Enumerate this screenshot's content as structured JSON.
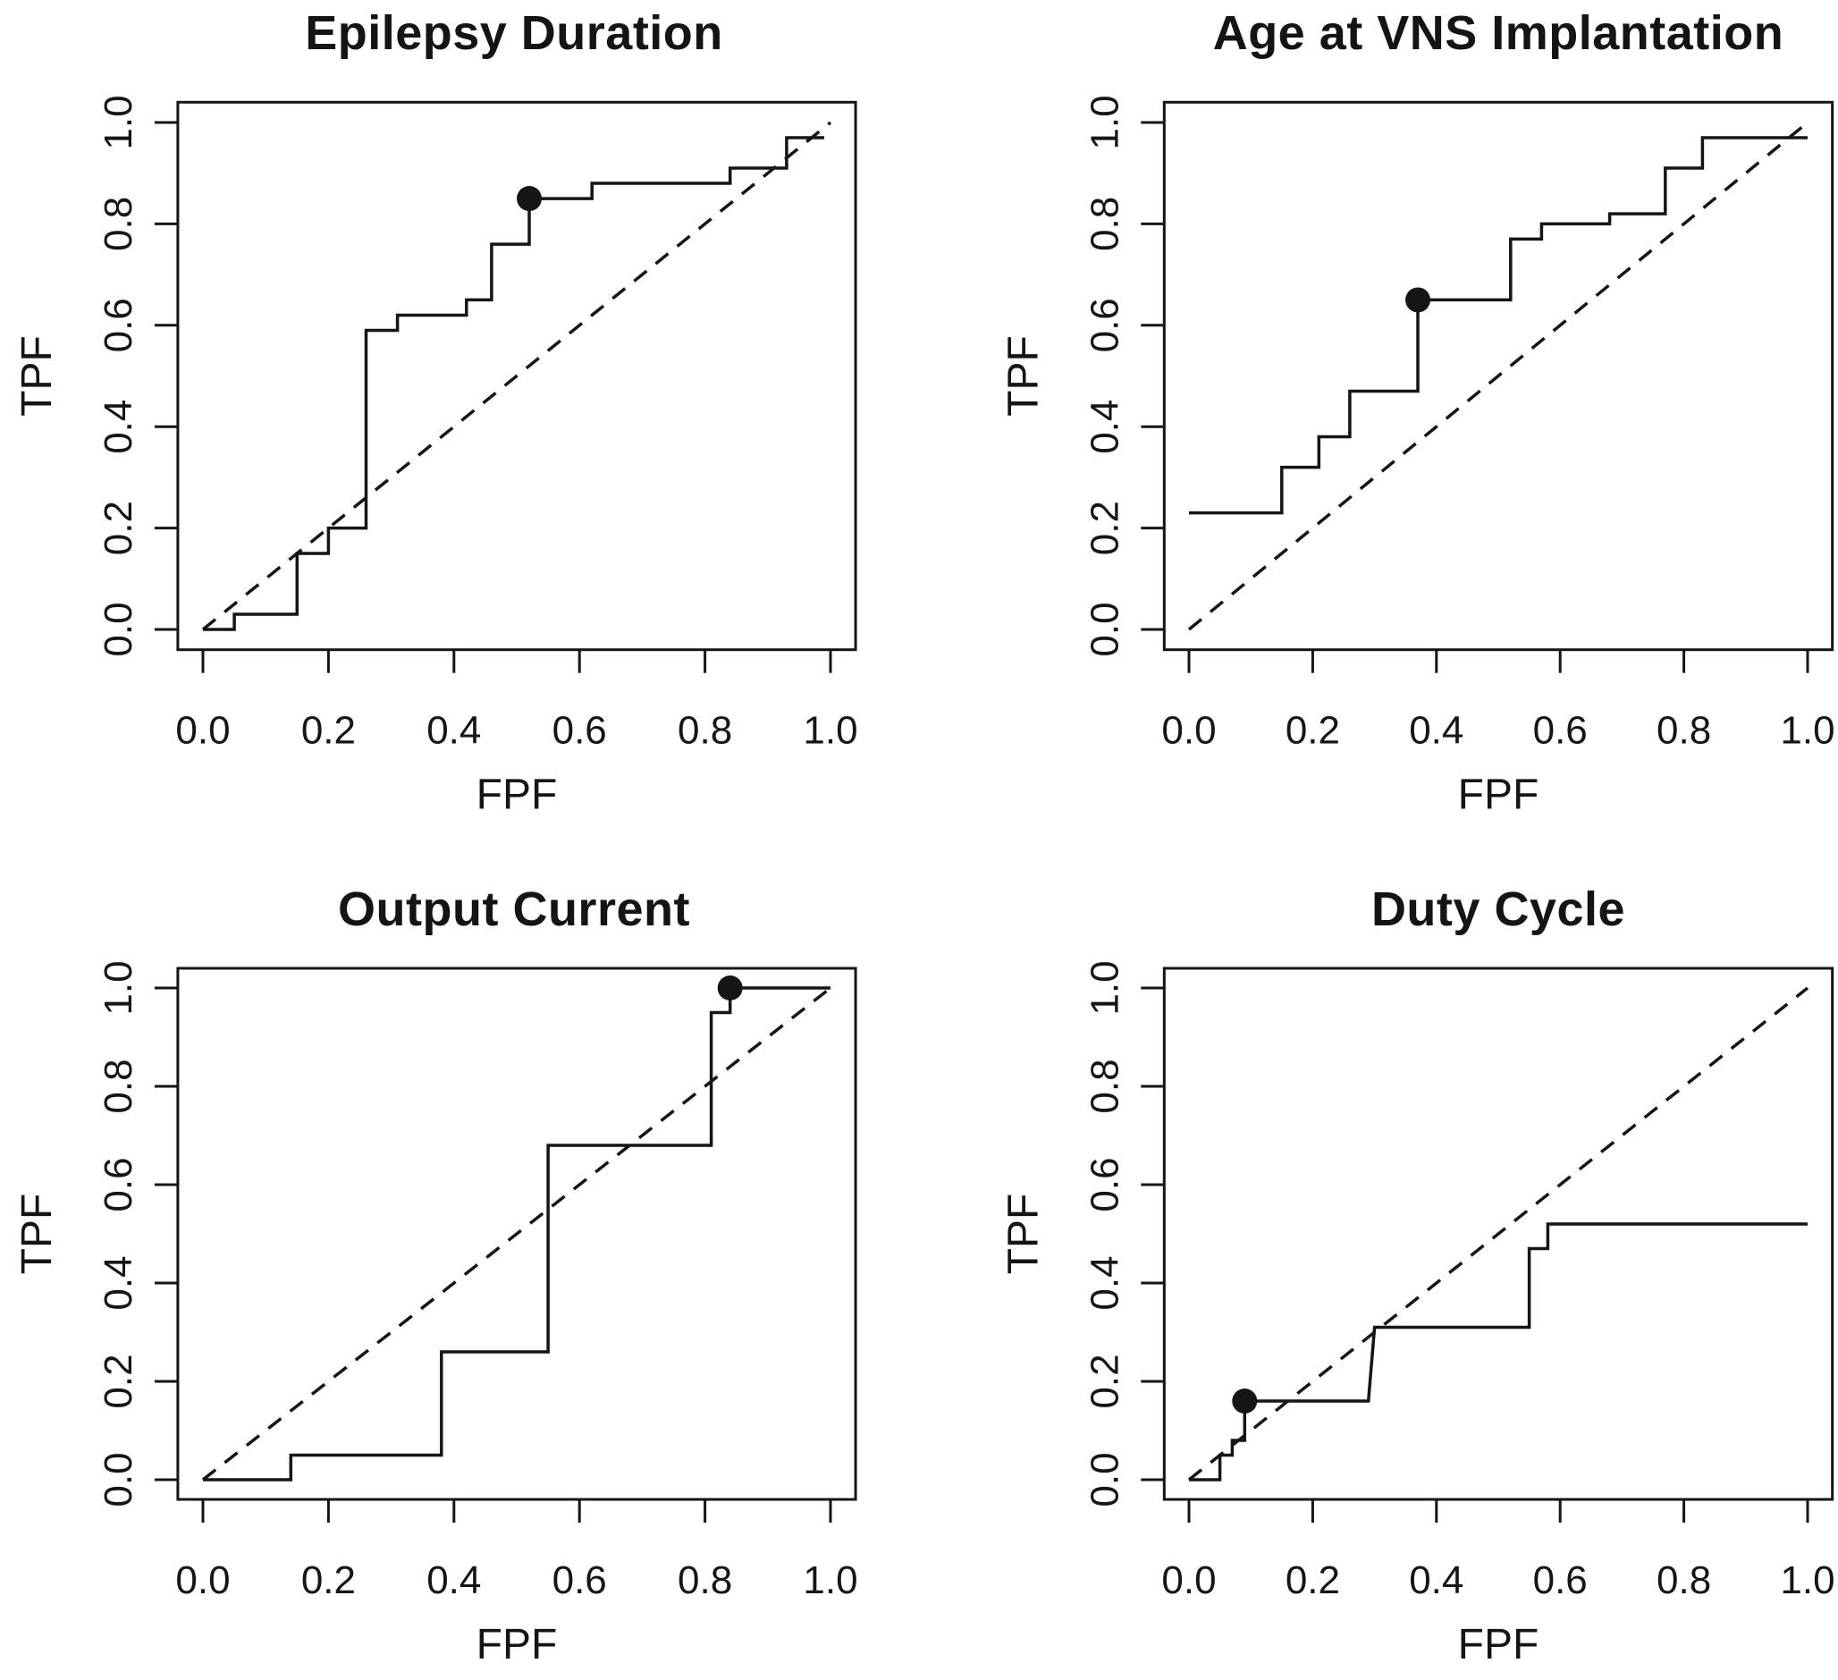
{
  "page": {
    "background": "#ffffff",
    "ink_color": "#151515",
    "description": "2x2 grid of ROC curves (TPF vs FPF), solid step curve, dashed chance diagonal, filled circle at optimal cutoff"
  },
  "chart_data": [
    {
      "type": "line",
      "subtype": "roc-step",
      "title": "Epilepsy Duration",
      "xlabel": "FPF",
      "ylabel": "TPF",
      "xlim": [
        0,
        1
      ],
      "ylim": [
        0,
        1
      ],
      "xticks": [
        "0.0",
        "0.2",
        "0.4",
        "0.6",
        "0.8",
        "1.0"
      ],
      "yticks": [
        "0.0",
        "0.2",
        "0.4",
        "0.6",
        "0.8",
        "1.0"
      ],
      "grid": false,
      "legend": "none",
      "series": [
        {
          "name": "ROC curve",
          "style": "step-solid",
          "points": [
            [
              0,
              0
            ],
            [
              0.05,
              0
            ],
            [
              0.05,
              0.03
            ],
            [
              0.15,
              0.03
            ],
            [
              0.15,
              0.15
            ],
            [
              0.2,
              0.15
            ],
            [
              0.2,
              0.2
            ],
            [
              0.26,
              0.2
            ],
            [
              0.26,
              0.59
            ],
            [
              0.31,
              0.59
            ],
            [
              0.31,
              0.62
            ],
            [
              0.42,
              0.62
            ],
            [
              0.42,
              0.65
            ],
            [
              0.46,
              0.65
            ],
            [
              0.46,
              0.76
            ],
            [
              0.52,
              0.76
            ],
            [
              0.52,
              0.85
            ],
            [
              0.62,
              0.85
            ],
            [
              0.62,
              0.88
            ],
            [
              0.84,
              0.88
            ],
            [
              0.84,
              0.91
            ],
            [
              0.93,
              0.91
            ],
            [
              0.93,
              0.97
            ],
            [
              0.99,
              0.97
            ]
          ]
        },
        {
          "name": "chance diagonal",
          "style": "dashed",
          "points": [
            [
              0,
              0
            ],
            [
              1,
              1
            ]
          ]
        }
      ],
      "marked_point": {
        "x": 0.52,
        "y": 0.85
      }
    },
    {
      "type": "line",
      "subtype": "roc-step",
      "title": "Age at VNS Implantation",
      "xlabel": "FPF",
      "ylabel": "TPF",
      "xlim": [
        0,
        1
      ],
      "ylim": [
        0,
        1
      ],
      "xticks": [
        "0.0",
        "0.2",
        "0.4",
        "0.6",
        "0.8",
        "1.0"
      ],
      "yticks": [
        "0.0",
        "0.2",
        "0.4",
        "0.6",
        "0.8",
        "1.0"
      ],
      "grid": false,
      "legend": "none",
      "series": [
        {
          "name": "ROC curve",
          "style": "step-solid",
          "points": [
            [
              0,
              0.23
            ],
            [
              0.15,
              0.23
            ],
            [
              0.15,
              0.32
            ],
            [
              0.21,
              0.32
            ],
            [
              0.21,
              0.38
            ],
            [
              0.26,
              0.38
            ],
            [
              0.26,
              0.47
            ],
            [
              0.37,
              0.47
            ],
            [
              0.37,
              0.65
            ],
            [
              0.52,
              0.65
            ],
            [
              0.52,
              0.77
            ],
            [
              0.57,
              0.77
            ],
            [
              0.57,
              0.8
            ],
            [
              0.68,
              0.8
            ],
            [
              0.68,
              0.82
            ],
            [
              0.77,
              0.82
            ],
            [
              0.77,
              0.91
            ],
            [
              0.83,
              0.91
            ],
            [
              0.83,
              0.97
            ],
            [
              1,
              0.97
            ]
          ]
        },
        {
          "name": "chance diagonal",
          "style": "dashed",
          "points": [
            [
              0,
              0
            ],
            [
              1,
              1
            ]
          ]
        }
      ],
      "marked_point": {
        "x": 0.37,
        "y": 0.65
      }
    },
    {
      "type": "line",
      "subtype": "roc-step",
      "title": "Output Current",
      "xlabel": "FPF",
      "ylabel": "TPF",
      "xlim": [
        0,
        1
      ],
      "ylim": [
        0,
        1
      ],
      "xticks": [
        "0.0",
        "0.2",
        "0.4",
        "0.6",
        "0.8",
        "1.0"
      ],
      "yticks": [
        "0.0",
        "0.2",
        "0.4",
        "0.6",
        "0.8",
        "1.0"
      ],
      "grid": false,
      "legend": "none",
      "series": [
        {
          "name": "ROC curve",
          "style": "step-solid",
          "points": [
            [
              0,
              0
            ],
            [
              0.14,
              0
            ],
            [
              0.14,
              0.05
            ],
            [
              0.38,
              0.05
            ],
            [
              0.38,
              0.26
            ],
            [
              0.55,
              0.26
            ],
            [
              0.55,
              0.68
            ],
            [
              0.81,
              0.68
            ],
            [
              0.81,
              0.95
            ],
            [
              0.84,
              0.95
            ],
            [
              0.84,
              1
            ],
            [
              1,
              1
            ]
          ]
        },
        {
          "name": "chance diagonal",
          "style": "dashed",
          "points": [
            [
              0,
              0
            ],
            [
              1,
              1
            ]
          ]
        }
      ],
      "marked_point": {
        "x": 0.84,
        "y": 1
      }
    },
    {
      "type": "line",
      "subtype": "roc-step",
      "title": "Duty Cycle",
      "xlabel": "FPF",
      "ylabel": "TPF",
      "xlim": [
        0,
        1
      ],
      "ylim": [
        0,
        1
      ],
      "xticks": [
        "0.0",
        "0.2",
        "0.4",
        "0.6",
        "0.8",
        "1.0"
      ],
      "yticks": [
        "0.0",
        "0.2",
        "0.4",
        "0.6",
        "0.8",
        "1.0"
      ],
      "grid": false,
      "legend": "none",
      "series": [
        {
          "name": "ROC curve",
          "style": "step-solid",
          "points": [
            [
              0,
              0
            ],
            [
              0.05,
              0
            ],
            [
              0.05,
              0.05
            ],
            [
              0.07,
              0.05
            ],
            [
              0.07,
              0.08
            ],
            [
              0.09,
              0.08
            ],
            [
              0.09,
              0.16
            ],
            [
              0.29,
              0.16
            ],
            [
              0.3,
              0.31
            ],
            [
              0.55,
              0.31
            ],
            [
              0.55,
              0.47
            ],
            [
              0.58,
              0.47
            ],
            [
              0.58,
              0.52
            ],
            [
              1,
              0.52
            ]
          ]
        },
        {
          "name": "chance diagonal",
          "style": "dashed",
          "points": [
            [
              0,
              0
            ],
            [
              1,
              1
            ]
          ]
        }
      ],
      "marked_point": {
        "x": 0.09,
        "y": 0.16
      }
    }
  ]
}
